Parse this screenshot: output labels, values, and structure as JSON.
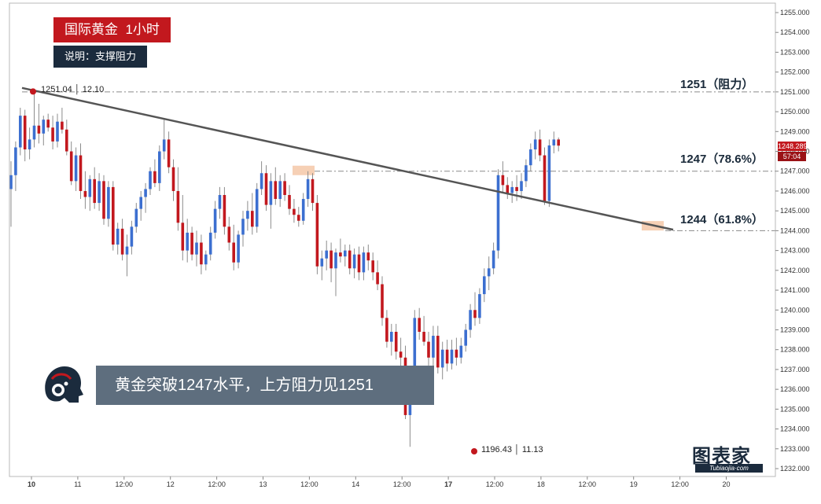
{
  "header": {
    "title": "国际黄金  1小时",
    "subtitle": "说明：支撑阻力"
  },
  "callout": {
    "text": "黄金突破1247水平，上方阻力见1251"
  },
  "annotations": {
    "high_label": "1251.04 │ 12.10",
    "low_label": "1196.43 │ 11.13",
    "levels": [
      {
        "price": 1251,
        "label": "1251（阻力）"
      },
      {
        "price": 1247,
        "label": "1247（78.6%）"
      },
      {
        "price": 1244,
        "label": "1244（61.8%）"
      }
    ],
    "current_price": "1248.289",
    "countdown": "57:04"
  },
  "logo": {
    "main": "图表家",
    "sub": "Tubiaojia·com"
  },
  "colors": {
    "up": "#3c6fd0",
    "down": "#c2181e",
    "trendline": "#555555",
    "title_bg": "#c2181e",
    "subtitle_bg": "#1b2b3d",
    "callout_bg": "#5e6e7e",
    "highlight": "#f5c8a8",
    "marker": "#c2181e"
  },
  "chart_data": {
    "type": "candlestick",
    "title": "国际黄金  1小时",
    "ylim": [
      1232,
      1255
    ],
    "y_ticks": [
      1232,
      1233,
      1234,
      1235,
      1236,
      1237,
      1238,
      1239,
      1240,
      1241,
      1242,
      1243,
      1244,
      1245,
      1246,
      1247,
      1248,
      1249,
      1250,
      1251,
      1252,
      1253,
      1254,
      1255
    ],
    "y_tick_labels": [
      "1232.000",
      "1233.000",
      "1234.000",
      "1235.000",
      "1236.000",
      "1237.000",
      "1238.000",
      "1239.000",
      "1240.000",
      "1241.000",
      "1242.000",
      "1243.000",
      "1244.000",
      "1245.000",
      "1246.000",
      "1247.000",
      "1248.000",
      "1249.000",
      "1250.000",
      "1251.000",
      "1252.000",
      "1253.000",
      "1254.000",
      "1255.000"
    ],
    "x_ticks": [
      "10",
      "11",
      "12:00",
      "12",
      "12:00",
      "13",
      "12:00",
      "14",
      "12:00",
      "17",
      "12:00",
      "18",
      "12:00",
      "19",
      "12:00",
      "20"
    ],
    "x_ticks_bold": [
      true,
      false,
      false,
      false,
      false,
      false,
      false,
      false,
      false,
      true,
      false,
      false,
      false,
      false,
      false,
      false
    ],
    "grid": false,
    "horizontal_levels": [
      1251,
      1247,
      1244
    ],
    "high_point": {
      "value": 1251.04,
      "label": "1251.04 │ 12.10"
    },
    "low_point": {
      "value": 1196.43,
      "label": "1196.43 │ 11.13"
    },
    "trendline": {
      "from": {
        "bar": 0,
        "value": 1251.2
      },
      "to": {
        "bar": 136,
        "value": 1244.05
      }
    },
    "last_price": 1248.289,
    "candles": [
      {
        "o": 1246.1,
        "h": 1247.5,
        "l": 1244.2,
        "c": 1246.8
      },
      {
        "o": 1246.8,
        "h": 1248.5,
        "l": 1246.0,
        "c": 1248.2
      },
      {
        "o": 1248.2,
        "h": 1250.2,
        "l": 1247.8,
        "c": 1249.8
      },
      {
        "o": 1249.8,
        "h": 1250.1,
        "l": 1247.5,
        "c": 1248.1
      },
      {
        "o": 1248.1,
        "h": 1249.2,
        "l": 1247.6,
        "c": 1248.6
      },
      {
        "o": 1248.6,
        "h": 1251.04,
        "l": 1248.2,
        "c": 1249.3
      },
      {
        "o": 1249.3,
        "h": 1250.4,
        "l": 1248.4,
        "c": 1248.9
      },
      {
        "o": 1248.9,
        "h": 1249.8,
        "l": 1248.3,
        "c": 1249.6
      },
      {
        "o": 1249.6,
        "h": 1249.9,
        "l": 1249.0,
        "c": 1249.2
      },
      {
        "o": 1249.2,
        "h": 1249.8,
        "l": 1248.1,
        "c": 1248.5
      },
      {
        "o": 1248.5,
        "h": 1249.9,
        "l": 1248.2,
        "c": 1249.5
      },
      {
        "o": 1249.5,
        "h": 1250.2,
        "l": 1248.9,
        "c": 1249.1
      },
      {
        "o": 1249.1,
        "h": 1249.6,
        "l": 1247.8,
        "c": 1248.0
      },
      {
        "o": 1248.0,
        "h": 1248.5,
        "l": 1246.3,
        "c": 1246.5
      },
      {
        "o": 1246.5,
        "h": 1248.2,
        "l": 1246.0,
        "c": 1247.8
      },
      {
        "o": 1247.8,
        "h": 1248.4,
        "l": 1245.6,
        "c": 1246.0
      },
      {
        "o": 1246.0,
        "h": 1247.0,
        "l": 1245.1,
        "c": 1245.7
      },
      {
        "o": 1245.7,
        "h": 1246.8,
        "l": 1245.0,
        "c": 1246.6
      },
      {
        "o": 1246.6,
        "h": 1247.2,
        "l": 1245.1,
        "c": 1245.4
      },
      {
        "o": 1245.4,
        "h": 1246.9,
        "l": 1245.0,
        "c": 1246.5
      },
      {
        "o": 1246.5,
        "h": 1246.8,
        "l": 1244.3,
        "c": 1244.6
      },
      {
        "o": 1244.6,
        "h": 1246.5,
        "l": 1244.2,
        "c": 1246.2
      },
      {
        "o": 1246.2,
        "h": 1246.5,
        "l": 1243.0,
        "c": 1243.3
      },
      {
        "o": 1243.3,
        "h": 1244.4,
        "l": 1242.8,
        "c": 1244.1
      },
      {
        "o": 1244.1,
        "h": 1244.6,
        "l": 1242.5,
        "c": 1242.8
      },
      {
        "o": 1242.8,
        "h": 1243.8,
        "l": 1241.7,
        "c": 1243.2
      },
      {
        "o": 1243.2,
        "h": 1244.5,
        "l": 1242.8,
        "c": 1244.2
      },
      {
        "o": 1244.2,
        "h": 1245.4,
        "l": 1243.9,
        "c": 1245.1
      },
      {
        "o": 1245.1,
        "h": 1246.0,
        "l": 1244.5,
        "c": 1245.7
      },
      {
        "o": 1245.7,
        "h": 1246.4,
        "l": 1244.9,
        "c": 1246.1
      },
      {
        "o": 1246.1,
        "h": 1247.2,
        "l": 1245.8,
        "c": 1247.0
      },
      {
        "o": 1247.0,
        "h": 1247.6,
        "l": 1246.2,
        "c": 1246.4
      },
      {
        "o": 1246.4,
        "h": 1248.3,
        "l": 1246.0,
        "c": 1248.0
      },
      {
        "o": 1248.0,
        "h": 1249.6,
        "l": 1247.6,
        "c": 1248.6
      },
      {
        "o": 1248.6,
        "h": 1249.0,
        "l": 1246.9,
        "c": 1247.2
      },
      {
        "o": 1247.2,
        "h": 1247.6,
        "l": 1245.5,
        "c": 1246.0
      },
      {
        "o": 1246.0,
        "h": 1247.2,
        "l": 1244.0,
        "c": 1244.4
      },
      {
        "o": 1244.4,
        "h": 1245.8,
        "l": 1242.5,
        "c": 1243.0
      },
      {
        "o": 1243.0,
        "h": 1244.6,
        "l": 1242.4,
        "c": 1243.9
      },
      {
        "o": 1243.9,
        "h": 1244.2,
        "l": 1242.5,
        "c": 1242.8
      },
      {
        "o": 1242.8,
        "h": 1244.0,
        "l": 1242.2,
        "c": 1243.4
      },
      {
        "o": 1243.4,
        "h": 1243.8,
        "l": 1241.8,
        "c": 1242.3
      },
      {
        "o": 1242.3,
        "h": 1243.0,
        "l": 1242.0,
        "c": 1242.8
      },
      {
        "o": 1242.8,
        "h": 1244.2,
        "l": 1242.5,
        "c": 1243.9
      },
      {
        "o": 1243.9,
        "h": 1245.5,
        "l": 1243.6,
        "c": 1245.1
      },
      {
        "o": 1245.1,
        "h": 1246.2,
        "l": 1244.6,
        "c": 1245.8
      },
      {
        "o": 1245.8,
        "h": 1246.2,
        "l": 1243.8,
        "c": 1244.2
      },
      {
        "o": 1244.2,
        "h": 1244.7,
        "l": 1243.0,
        "c": 1243.4
      },
      {
        "o": 1243.4,
        "h": 1244.3,
        "l": 1242.0,
        "c": 1242.4
      },
      {
        "o": 1242.4,
        "h": 1244.0,
        "l": 1242.1,
        "c": 1243.8
      },
      {
        "o": 1243.8,
        "h": 1245.0,
        "l": 1243.2,
        "c": 1244.6
      },
      {
        "o": 1244.6,
        "h": 1245.5,
        "l": 1244.0,
        "c": 1245.0
      },
      {
        "o": 1245.0,
        "h": 1245.9,
        "l": 1243.8,
        "c": 1244.2
      },
      {
        "o": 1244.2,
        "h": 1246.4,
        "l": 1243.9,
        "c": 1246.1
      },
      {
        "o": 1246.1,
        "h": 1247.5,
        "l": 1245.8,
        "c": 1246.9
      },
      {
        "o": 1246.9,
        "h": 1247.3,
        "l": 1245.0,
        "c": 1245.3
      },
      {
        "o": 1245.3,
        "h": 1246.9,
        "l": 1244.1,
        "c": 1246.5
      },
      {
        "o": 1246.5,
        "h": 1247.2,
        "l": 1245.3,
        "c": 1245.6
      },
      {
        "o": 1245.6,
        "h": 1246.8,
        "l": 1245.2,
        "c": 1246.5
      },
      {
        "o": 1246.5,
        "h": 1246.9,
        "l": 1245.5,
        "c": 1245.8
      },
      {
        "o": 1245.8,
        "h": 1246.3,
        "l": 1244.8,
        "c": 1245.1
      },
      {
        "o": 1245.1,
        "h": 1245.6,
        "l": 1244.4,
        "c": 1244.8
      },
      {
        "o": 1244.8,
        "h": 1245.2,
        "l": 1244.2,
        "c": 1244.5
      },
      {
        "o": 1244.5,
        "h": 1245.9,
        "l": 1244.3,
        "c": 1245.6
      },
      {
        "o": 1245.6,
        "h": 1247.0,
        "l": 1245.2,
        "c": 1246.6
      },
      {
        "o": 1246.6,
        "h": 1246.9,
        "l": 1245.0,
        "c": 1245.4
      },
      {
        "o": 1245.4,
        "h": 1245.8,
        "l": 1241.8,
        "c": 1242.2
      },
      {
        "o": 1242.2,
        "h": 1243.0,
        "l": 1241.5,
        "c": 1242.6
      },
      {
        "o": 1242.6,
        "h": 1243.5,
        "l": 1242.0,
        "c": 1243.0
      },
      {
        "o": 1243.0,
        "h": 1243.4,
        "l": 1241.4,
        "c": 1242.1
      },
      {
        "o": 1242.1,
        "h": 1243.1,
        "l": 1240.7,
        "c": 1242.9
      },
      {
        "o": 1242.9,
        "h": 1243.6,
        "l": 1242.4,
        "c": 1242.7
      },
      {
        "o": 1242.7,
        "h": 1243.3,
        "l": 1242.2,
        "c": 1243.0
      },
      {
        "o": 1243.0,
        "h": 1243.3,
        "l": 1241.8,
        "c": 1242.1
      },
      {
        "o": 1242.1,
        "h": 1243.1,
        "l": 1241.6,
        "c": 1242.8
      },
      {
        "o": 1242.8,
        "h": 1243.2,
        "l": 1241.5,
        "c": 1241.9
      },
      {
        "o": 1241.9,
        "h": 1243.2,
        "l": 1241.5,
        "c": 1242.9
      },
      {
        "o": 1242.9,
        "h": 1243.3,
        "l": 1242.0,
        "c": 1242.5
      },
      {
        "o": 1242.5,
        "h": 1242.9,
        "l": 1241.5,
        "c": 1241.9
      },
      {
        "o": 1241.9,
        "h": 1242.5,
        "l": 1241.0,
        "c": 1241.3
      },
      {
        "o": 1241.3,
        "h": 1241.7,
        "l": 1239.2,
        "c": 1239.6
      },
      {
        "o": 1239.6,
        "h": 1240.0,
        "l": 1238.1,
        "c": 1238.4
      },
      {
        "o": 1238.4,
        "h": 1239.3,
        "l": 1237.7,
        "c": 1238.9
      },
      {
        "o": 1238.9,
        "h": 1239.3,
        "l": 1237.5,
        "c": 1237.9
      },
      {
        "o": 1237.9,
        "h": 1238.6,
        "l": 1237.0,
        "c": 1237.6
      },
      {
        "o": 1237.6,
        "h": 1238.2,
        "l": 1234.5,
        "c": 1234.7
      },
      {
        "o": 1234.7,
        "h": 1236.2,
        "l": 1233.1,
        "c": 1235.8
      },
      {
        "o": 1235.8,
        "h": 1240.0,
        "l": 1235.4,
        "c": 1239.6
      },
      {
        "o": 1239.6,
        "h": 1240.1,
        "l": 1238.5,
        "c": 1238.9
      },
      {
        "o": 1238.9,
        "h": 1239.7,
        "l": 1238.2,
        "c": 1238.4
      },
      {
        "o": 1238.4,
        "h": 1238.9,
        "l": 1237.2,
        "c": 1237.6
      },
      {
        "o": 1237.6,
        "h": 1239.2,
        "l": 1237.0,
        "c": 1238.7
      },
      {
        "o": 1238.7,
        "h": 1239.2,
        "l": 1236.8,
        "c": 1237.1
      },
      {
        "o": 1237.1,
        "h": 1238.4,
        "l": 1236.5,
        "c": 1238.0
      },
      {
        "o": 1238.0,
        "h": 1238.5,
        "l": 1236.9,
        "c": 1237.3
      },
      {
        "o": 1237.3,
        "h": 1238.5,
        "l": 1237.0,
        "c": 1238.0
      },
      {
        "o": 1238.0,
        "h": 1238.6,
        "l": 1237.2,
        "c": 1237.6
      },
      {
        "o": 1237.6,
        "h": 1238.6,
        "l": 1237.3,
        "c": 1238.2
      },
      {
        "o": 1238.2,
        "h": 1239.3,
        "l": 1237.9,
        "c": 1239.0
      },
      {
        "o": 1239.0,
        "h": 1240.3,
        "l": 1238.6,
        "c": 1240.0
      },
      {
        "o": 1240.0,
        "h": 1240.9,
        "l": 1239.2,
        "c": 1239.6
      },
      {
        "o": 1239.6,
        "h": 1241.1,
        "l": 1239.3,
        "c": 1240.8
      },
      {
        "o": 1240.8,
        "h": 1242.1,
        "l": 1240.4,
        "c": 1241.7
      },
      {
        "o": 1241.7,
        "h": 1242.7,
        "l": 1241.0,
        "c": 1242.1
      },
      {
        "o": 1242.1,
        "h": 1243.4,
        "l": 1241.8,
        "c": 1243.0
      },
      {
        "o": 1243.0,
        "h": 1247.1,
        "l": 1242.6,
        "c": 1246.8
      },
      {
        "o": 1246.8,
        "h": 1247.5,
        "l": 1245.9,
        "c": 1246.3
      },
      {
        "o": 1246.3,
        "h": 1246.7,
        "l": 1245.6,
        "c": 1245.9
      },
      {
        "o": 1245.9,
        "h": 1246.5,
        "l": 1245.4,
        "c": 1246.2
      },
      {
        "o": 1246.2,
        "h": 1246.8,
        "l": 1245.5,
        "c": 1246.0
      },
      {
        "o": 1246.0,
        "h": 1246.9,
        "l": 1245.6,
        "c": 1246.5
      },
      {
        "o": 1246.5,
        "h": 1247.6,
        "l": 1246.2,
        "c": 1247.3
      },
      {
        "o": 1247.3,
        "h": 1248.4,
        "l": 1247.0,
        "c": 1248.1
      },
      {
        "o": 1248.1,
        "h": 1249.0,
        "l": 1247.6,
        "c": 1248.6
      },
      {
        "o": 1248.6,
        "h": 1249.1,
        "l": 1247.5,
        "c": 1247.8
      },
      {
        "o": 1247.8,
        "h": 1248.2,
        "l": 1245.3,
        "c": 1245.5
      },
      {
        "o": 1245.5,
        "h": 1248.6,
        "l": 1245.2,
        "c": 1248.3
      },
      {
        "o": 1248.3,
        "h": 1249.0,
        "l": 1247.9,
        "c": 1248.6
      },
      {
        "o": 1248.6,
        "h": 1248.7,
        "l": 1248.0,
        "c": 1248.289
      }
    ]
  }
}
